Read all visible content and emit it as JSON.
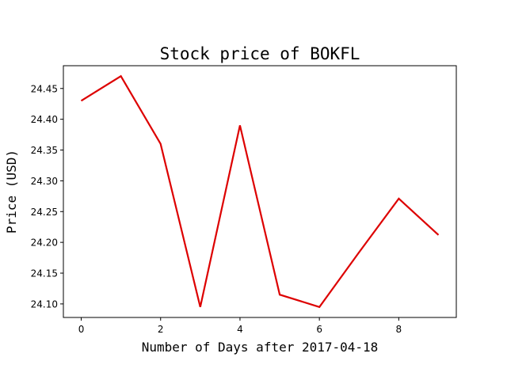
{
  "chart_data": {
    "type": "line",
    "title": "Stock price of BOKFL",
    "xlabel": "Number of Days after 2017-04-18",
    "ylabel": "Price (USD)",
    "x": [
      0,
      1,
      2,
      3,
      4,
      5,
      6,
      7,
      8,
      9
    ],
    "series": [
      {
        "values": [
          24.43,
          24.47,
          24.36,
          24.095,
          24.39,
          24.115,
          24.095,
          24.184,
          24.271,
          24.212
        ],
        "color": "#dd0000"
      }
    ],
    "xlim": [
      -0.45,
      9.45
    ],
    "ylim": [
      24.078,
      24.487
    ],
    "xticks": [
      0,
      2,
      4,
      6,
      8
    ],
    "xtick_labels": [
      "0",
      "2",
      "4",
      "6",
      "8"
    ],
    "yticks": [
      24.1,
      24.15,
      24.2,
      24.25,
      24.3,
      24.35,
      24.4,
      24.45
    ],
    "ytick_labels": [
      "24.10",
      "24.15",
      "24.20",
      "24.25",
      "24.30",
      "24.35",
      "24.40",
      "24.45"
    ],
    "grid": false,
    "legend": "none"
  }
}
